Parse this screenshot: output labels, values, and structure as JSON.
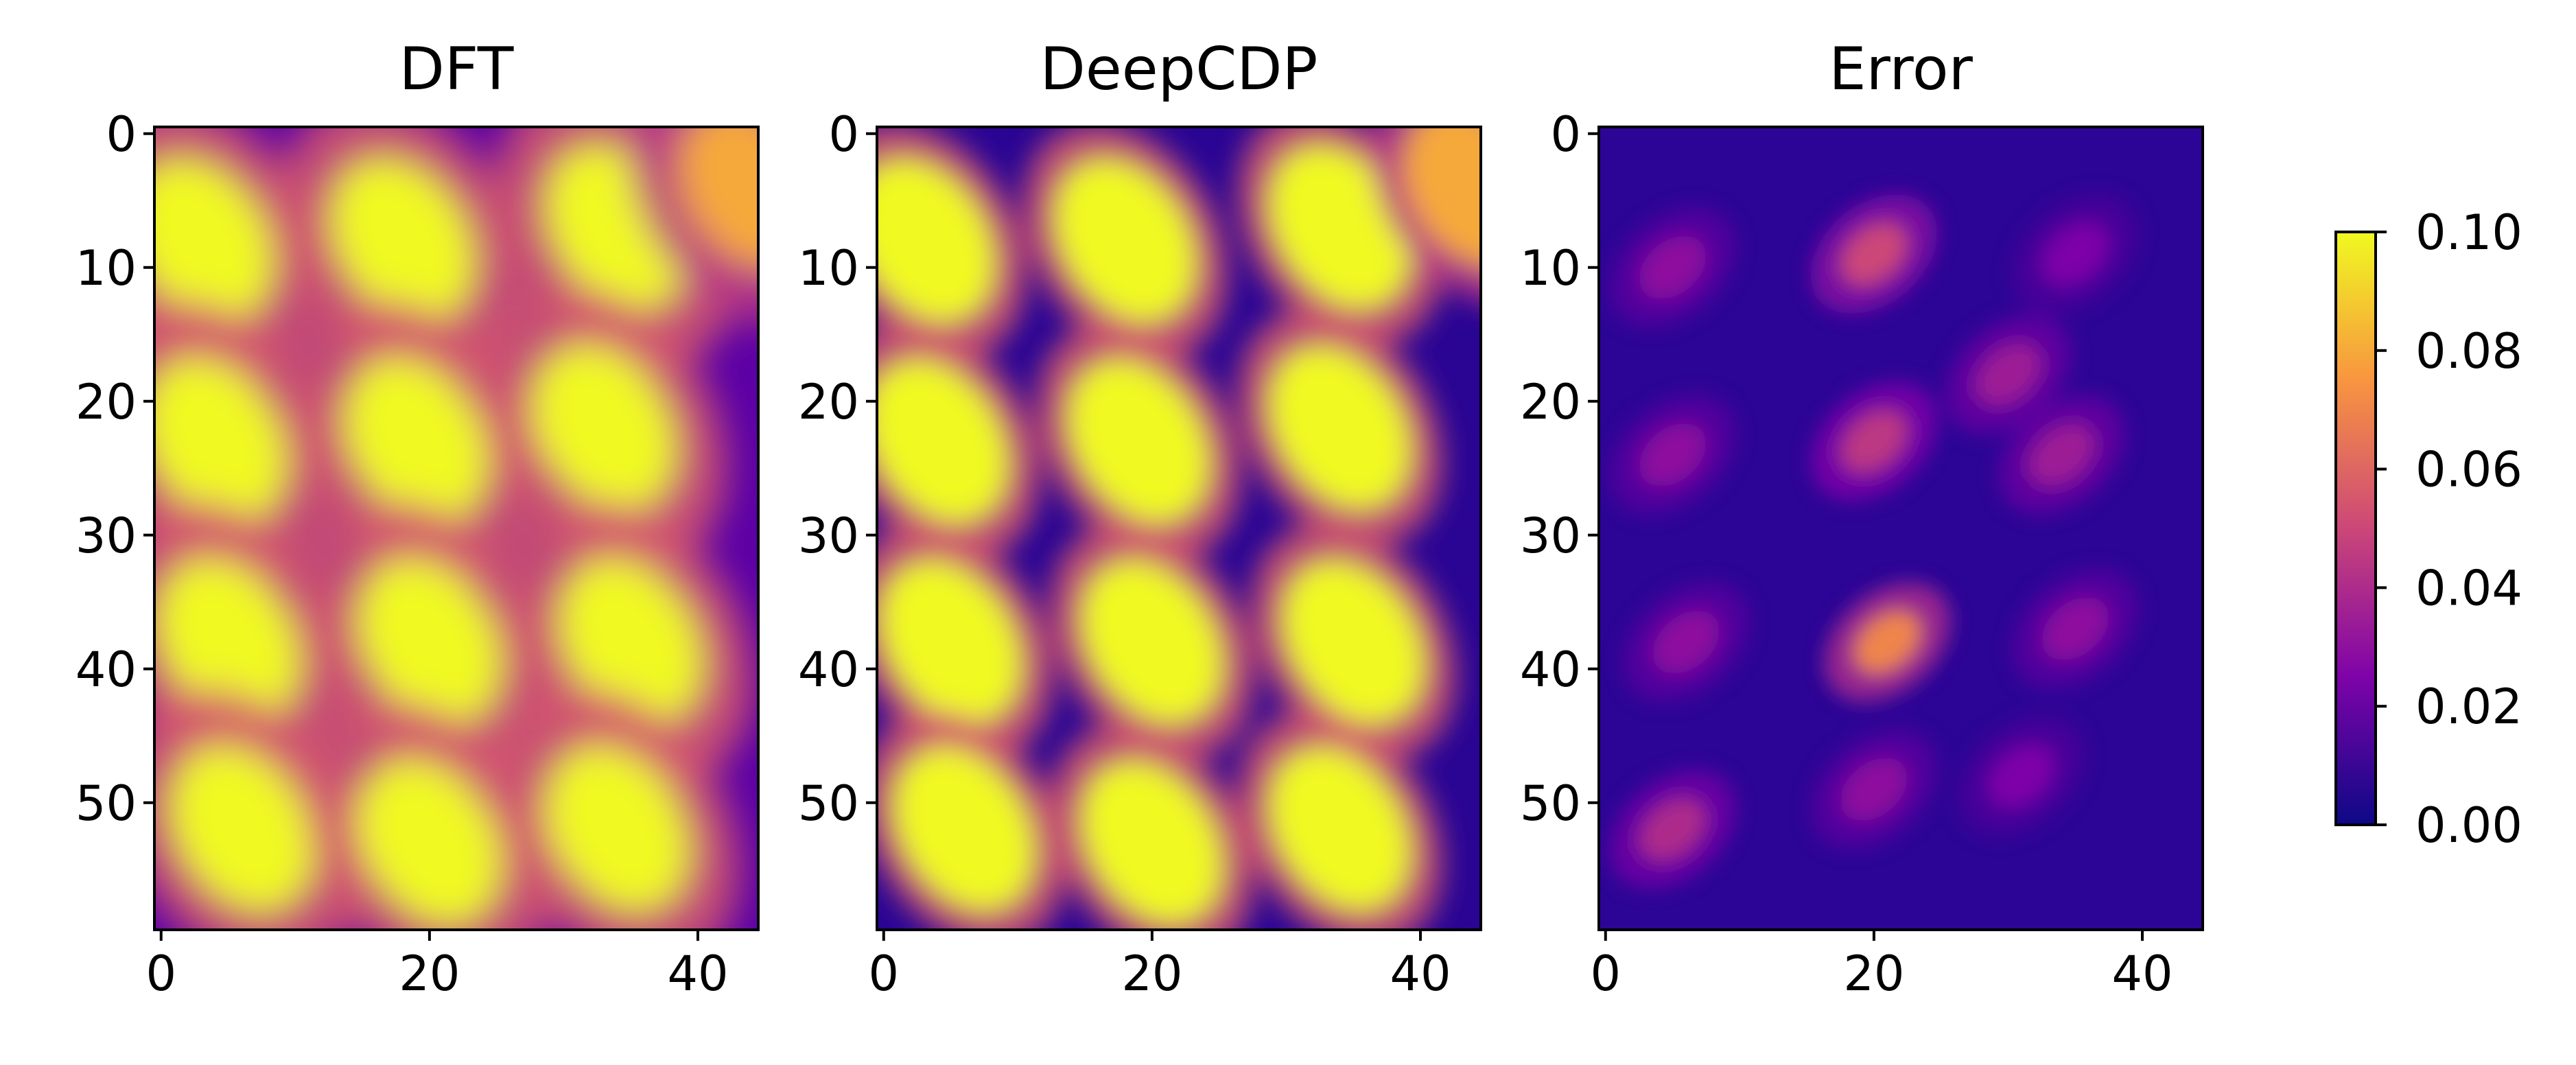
{
  "chart_data": [
    {
      "type": "heatmap",
      "title": "DFT",
      "x_ticks": [
        0,
        20,
        40
      ],
      "y_ticks": [
        0,
        10,
        20,
        30,
        40,
        50
      ],
      "xlim": [
        -0.5,
        44.5
      ],
      "ylim": [
        59.5,
        -0.5
      ],
      "colormap": "plasma",
      "vmin": 0.0,
      "vmax": 0.1,
      "blobs": [
        {
          "x": 3,
          "y": 8,
          "value": 0.1
        },
        {
          "x": 18,
          "y": 8,
          "value": 0.1
        },
        {
          "x": 34,
          "y": 7,
          "value": 0.1
        },
        {
          "x": 44,
          "y": 4,
          "value": 0.08
        },
        {
          "x": 4,
          "y": 23,
          "value": 0.1
        },
        {
          "x": 19,
          "y": 23,
          "value": 0.1
        },
        {
          "x": 33,
          "y": 22,
          "value": 0.1
        },
        {
          "x": 5,
          "y": 38,
          "value": 0.1
        },
        {
          "x": 20,
          "y": 38,
          "value": 0.1
        },
        {
          "x": 35,
          "y": 38,
          "value": 0.1
        },
        {
          "x": 6,
          "y": 52,
          "value": 0.1
        },
        {
          "x": 20,
          "y": 53,
          "value": 0.1
        },
        {
          "x": 34,
          "y": 52,
          "value": 0.1
        }
      ]
    },
    {
      "type": "heatmap",
      "title": "DeepCDP",
      "x_ticks": [
        0,
        20,
        40
      ],
      "y_ticks": [
        0,
        10,
        20,
        30,
        40,
        50
      ],
      "xlim": [
        -0.5,
        44.5
      ],
      "ylim": [
        59.5,
        -0.5
      ],
      "colormap": "plasma",
      "vmin": 0.0,
      "vmax": 0.1,
      "blobs": [
        {
          "x": 3,
          "y": 8,
          "value": 0.1
        },
        {
          "x": 18,
          "y": 8,
          "value": 0.1
        },
        {
          "x": 34,
          "y": 7,
          "value": 0.1
        },
        {
          "x": 44,
          "y": 4,
          "value": 0.08
        },
        {
          "x": 4,
          "y": 23,
          "value": 0.1
        },
        {
          "x": 19,
          "y": 23,
          "value": 0.1
        },
        {
          "x": 34,
          "y": 22,
          "value": 0.1
        },
        {
          "x": 5,
          "y": 38,
          "value": 0.1
        },
        {
          "x": 20,
          "y": 38,
          "value": 0.1
        },
        {
          "x": 35,
          "y": 38,
          "value": 0.1
        },
        {
          "x": 6,
          "y": 52,
          "value": 0.1
        },
        {
          "x": 20,
          "y": 53,
          "value": 0.1
        },
        {
          "x": 34,
          "y": 52,
          "value": 0.1
        }
      ]
    },
    {
      "type": "heatmap",
      "title": "Error",
      "x_ticks": [
        0,
        20,
        40
      ],
      "y_ticks": [
        0,
        10,
        20,
        30,
        40,
        50
      ],
      "xlim": [
        -0.5,
        44.5
      ],
      "ylim": [
        59.5,
        -0.5
      ],
      "colormap": "plasma",
      "vmin": 0.0,
      "vmax": 0.1,
      "blobs": [
        {
          "x": 20,
          "y": 9,
          "value": 0.05
        },
        {
          "x": 5,
          "y": 10,
          "value": 0.03
        },
        {
          "x": 35,
          "y": 9,
          "value": 0.025
        },
        {
          "x": 30,
          "y": 18,
          "value": 0.035
        },
        {
          "x": 20,
          "y": 23,
          "value": 0.045
        },
        {
          "x": 5,
          "y": 24,
          "value": 0.03
        },
        {
          "x": 34,
          "y": 24,
          "value": 0.035
        },
        {
          "x": 21,
          "y": 38,
          "value": 0.07
        },
        {
          "x": 6,
          "y": 38,
          "value": 0.03
        },
        {
          "x": 35,
          "y": 37,
          "value": 0.03
        },
        {
          "x": 5,
          "y": 52,
          "value": 0.04
        },
        {
          "x": 20,
          "y": 49,
          "value": 0.03
        },
        {
          "x": 31,
          "y": 48,
          "value": 0.025
        }
      ]
    }
  ],
  "colorbar": {
    "colormap": "plasma",
    "ticks": [
      "0.00",
      "0.02",
      "0.04",
      "0.06",
      "0.08",
      "0.10"
    ],
    "range": [
      0.0,
      0.1
    ]
  }
}
